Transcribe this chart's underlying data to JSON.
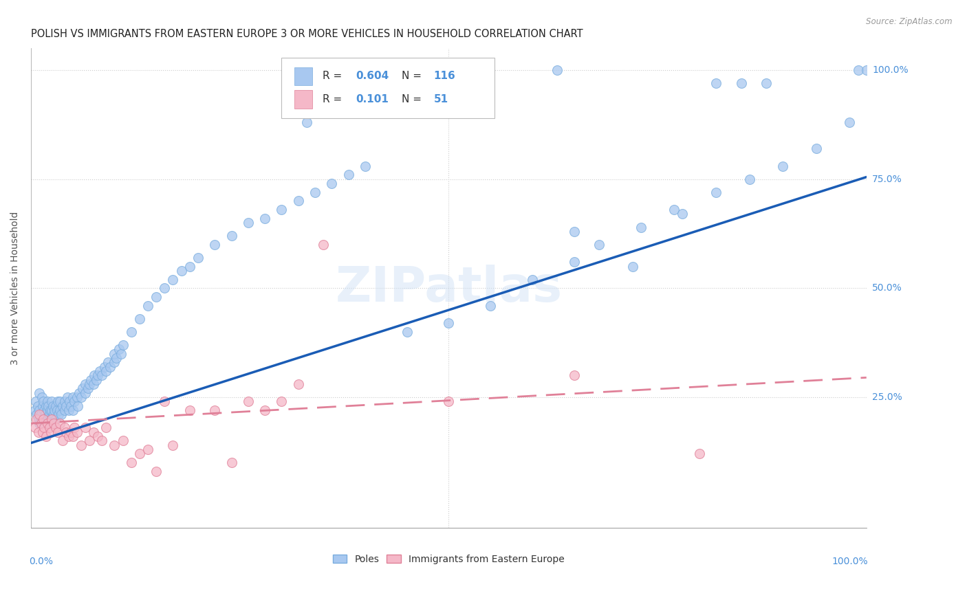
{
  "title": "POLISH VS IMMIGRANTS FROM EASTERN EUROPE 3 OR MORE VEHICLES IN HOUSEHOLD CORRELATION CHART",
  "source": "Source: ZipAtlas.com",
  "ylabel": "3 or more Vehicles in Household",
  "legend_label1": "Poles",
  "legend_label2": "Immigrants from Eastern Europe",
  "r1": "0.604",
  "n1": "116",
  "r2": "0.101",
  "n2": "51",
  "blue_scatter_color": "#a8c8f0",
  "blue_scatter_edge": "#7aadde",
  "pink_scatter_color": "#f5b8c8",
  "pink_scatter_edge": "#e08098",
  "line_blue_color": "#1a5cb5",
  "line_pink_color": "#e08098",
  "watermark": "ZIPatlas",
  "right_tick_color": "#4a90d9",
  "xlim": [
    0,
    1
  ],
  "ylim": [
    -0.05,
    1.05
  ],
  "blue_line_x0": 0.0,
  "blue_line_y0": 0.145,
  "blue_line_x1": 1.0,
  "blue_line_y1": 0.755,
  "pink_line_x0": 0.0,
  "pink_line_y0": 0.19,
  "pink_line_x1": 1.0,
  "pink_line_y1": 0.295,
  "poles_x": [
    0.005,
    0.006,
    0.007,
    0.008,
    0.009,
    0.01,
    0.01,
    0.01,
    0.012,
    0.013,
    0.014,
    0.015,
    0.015,
    0.016,
    0.017,
    0.018,
    0.019,
    0.02,
    0.02,
    0.02,
    0.021,
    0.022,
    0.023,
    0.024,
    0.025,
    0.025,
    0.025,
    0.026,
    0.027,
    0.028,
    0.03,
    0.03,
    0.031,
    0.032,
    0.033,
    0.035,
    0.035,
    0.036,
    0.038,
    0.04,
    0.04,
    0.042,
    0.044,
    0.045,
    0.046,
    0.048,
    0.05,
    0.05,
    0.052,
    0.055,
    0.056,
    0.058,
    0.06,
    0.062,
    0.065,
    0.065,
    0.068,
    0.07,
    0.072,
    0.075,
    0.076,
    0.078,
    0.08,
    0.082,
    0.085,
    0.088,
    0.09,
    0.092,
    0.095,
    0.1,
    0.1,
    0.102,
    0.105,
    0.108,
    0.11,
    0.12,
    0.13,
    0.14,
    0.15,
    0.16,
    0.17,
    0.18,
    0.19,
    0.2,
    0.22,
    0.24,
    0.26,
    0.28,
    0.3,
    0.32,
    0.34,
    0.36,
    0.38,
    0.4,
    0.33,
    0.45,
    0.65,
    0.72,
    0.82,
    0.85,
    0.88,
    0.99,
    0.5,
    0.55,
    0.6,
    0.65,
    0.68,
    0.73,
    0.77,
    0.82,
    0.86,
    0.9,
    0.94,
    0.98,
    1.0,
    0.63,
    0.78
  ],
  "poles_y": [
    0.22,
    0.24,
    0.21,
    0.23,
    0.2,
    0.22,
    0.26,
    0.19,
    0.21,
    0.25,
    0.23,
    0.2,
    0.24,
    0.22,
    0.21,
    0.23,
    0.19,
    0.22,
    0.24,
    0.2,
    0.23,
    0.21,
    0.22,
    0.2,
    0.24,
    0.22,
    0.19,
    0.23,
    0.21,
    0.22,
    0.23,
    0.2,
    0.22,
    0.24,
    0.21,
    0.22,
    0.24,
    0.21,
    0.23,
    0.22,
    0.24,
    0.23,
    0.25,
    0.22,
    0.24,
    0.23,
    0.22,
    0.25,
    0.24,
    0.25,
    0.23,
    0.26,
    0.25,
    0.27,
    0.26,
    0.28,
    0.27,
    0.28,
    0.29,
    0.28,
    0.3,
    0.29,
    0.3,
    0.31,
    0.3,
    0.32,
    0.31,
    0.33,
    0.32,
    0.33,
    0.35,
    0.34,
    0.36,
    0.35,
    0.37,
    0.4,
    0.43,
    0.46,
    0.48,
    0.5,
    0.52,
    0.54,
    0.55,
    0.57,
    0.6,
    0.62,
    0.65,
    0.66,
    0.68,
    0.7,
    0.72,
    0.74,
    0.76,
    0.78,
    0.88,
    0.4,
    0.63,
    0.55,
    0.97,
    0.97,
    0.97,
    1.0,
    0.42,
    0.46,
    0.52,
    0.56,
    0.6,
    0.64,
    0.68,
    0.72,
    0.75,
    0.78,
    0.82,
    0.88,
    1.0,
    1.0,
    0.67
  ],
  "poles_y_outlier_idx": [
    94
  ],
  "poles_y_outlier_val": [
    0.82
  ],
  "imm_x": [
    0.005,
    0.007,
    0.009,
    0.01,
    0.012,
    0.014,
    0.015,
    0.016,
    0.018,
    0.02,
    0.022,
    0.024,
    0.025,
    0.027,
    0.03,
    0.032,
    0.035,
    0.038,
    0.04,
    0.042,
    0.045,
    0.048,
    0.05,
    0.052,
    0.055,
    0.06,
    0.065,
    0.07,
    0.075,
    0.08,
    0.085,
    0.09,
    0.1,
    0.11,
    0.12,
    0.13,
    0.14,
    0.15,
    0.16,
    0.17,
    0.19,
    0.22,
    0.24,
    0.26,
    0.28,
    0.3,
    0.32,
    0.35,
    0.5,
    0.65,
    0.8
  ],
  "imm_y": [
    0.18,
    0.2,
    0.17,
    0.21,
    0.19,
    0.17,
    0.2,
    0.18,
    0.16,
    0.19,
    0.18,
    0.17,
    0.2,
    0.19,
    0.18,
    0.17,
    0.19,
    0.15,
    0.18,
    0.17,
    0.16,
    0.17,
    0.16,
    0.18,
    0.17,
    0.14,
    0.18,
    0.15,
    0.17,
    0.16,
    0.15,
    0.18,
    0.14,
    0.15,
    0.1,
    0.12,
    0.13,
    0.08,
    0.24,
    0.14,
    0.22,
    0.22,
    0.1,
    0.24,
    0.22,
    0.24,
    0.28,
    0.6,
    0.24,
    0.3,
    0.12
  ]
}
